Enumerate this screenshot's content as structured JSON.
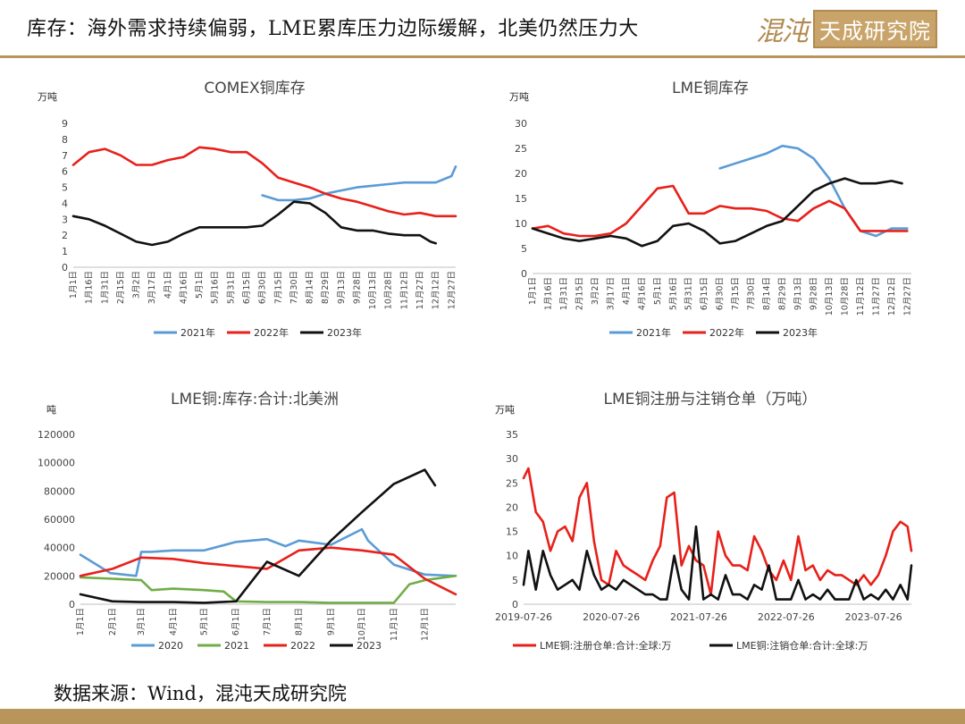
{
  "header": {
    "title": "库存：海外需求持续偏弱，LME累库压力边际缓解，北美仍然压力大",
    "logo_script": "混沌",
    "logo_box": "天成研究院"
  },
  "footer": {
    "source": "数据来源：Wind，混沌天成研究院"
  },
  "colors": {
    "blue": "#5b9bd5",
    "red": "#e8201a",
    "black": "#111111",
    "green": "#70ad47",
    "accent": "#b8955a"
  },
  "chart_data": [
    {
      "id": "comex",
      "type": "line",
      "title": "COMEX铜库存",
      "ylabel": "万吨",
      "ylim": [
        0,
        9
      ],
      "yticks": [
        0,
        1,
        2,
        3,
        4,
        5,
        6,
        7,
        8,
        9
      ],
      "xlim": [
        1,
        365
      ],
      "categories": [
        "1月1日",
        "1月16日",
        "1月31日",
        "2月15日",
        "3月2日",
        "3月17日",
        "4月1日",
        "4月16日",
        "5月1日",
        "5月16日",
        "5月31日",
        "6月15日",
        "6月30日",
        "7月15日",
        "7月30日",
        "8月14日",
        "8月29日",
        "9月13日",
        "9月28日",
        "10月13日",
        "10月28日",
        "11月12日",
        "11月27日",
        "12月12日",
        "12月27日"
      ],
      "x": [
        1,
        16,
        31,
        46,
        61,
        76,
        91,
        106,
        121,
        136,
        151,
        166,
        181,
        196,
        211,
        226,
        241,
        256,
        271,
        286,
        301,
        316,
        331,
        346,
        361
      ],
      "series": [
        {
          "name": "2021年",
          "color": "blue",
          "x_start": 181,
          "x": [
            181,
            196,
            211,
            226,
            241,
            256,
            271,
            286,
            301,
            316,
            331,
            346,
            361,
            365
          ],
          "values": [
            4.5,
            4.2,
            4.2,
            4.3,
            4.6,
            4.8,
            5.0,
            5.1,
            5.2,
            5.3,
            5.3,
            5.3,
            5.7,
            6.3
          ]
        },
        {
          "name": "2022年",
          "color": "red",
          "x": [
            1,
            16,
            31,
            46,
            61,
            76,
            91,
            106,
            121,
            136,
            151,
            166,
            181,
            196,
            211,
            226,
            241,
            256,
            271,
            286,
            301,
            316,
            331,
            346,
            361,
            365
          ],
          "values": [
            6.4,
            7.2,
            7.4,
            7.0,
            6.4,
            6.4,
            6.7,
            6.9,
            7.5,
            7.4,
            7.2,
            7.2,
            6.5,
            5.6,
            5.3,
            5.0,
            4.6,
            4.3,
            4.1,
            3.8,
            3.5,
            3.3,
            3.4,
            3.2,
            3.2,
            3.2
          ]
        },
        {
          "name": "2023年",
          "color": "black",
          "x": [
            1,
            16,
            31,
            46,
            61,
            76,
            91,
            106,
            121,
            136,
            151,
            166,
            181,
            196,
            211,
            226,
            241,
            256,
            271,
            286,
            301,
            316,
            331,
            341,
            346
          ],
          "values": [
            3.2,
            3.0,
            2.6,
            2.1,
            1.6,
            1.4,
            1.6,
            2.1,
            2.5,
            2.5,
            2.5,
            2.5,
            2.6,
            3.3,
            4.1,
            4.0,
            3.4,
            2.5,
            2.3,
            2.3,
            2.1,
            2.0,
            2.0,
            1.6,
            1.5
          ]
        }
      ]
    },
    {
      "id": "lme",
      "type": "line",
      "title": "LME铜库存",
      "ylabel": "万吨",
      "ylim": [
        0,
        30
      ],
      "yticks": [
        0,
        5,
        10,
        15,
        20,
        25,
        30
      ],
      "xlim": [
        1,
        365
      ],
      "categories": [
        "1月1日",
        "1月16日",
        "1月31日",
        "2月15日",
        "3月2日",
        "3月17日",
        "4月1日",
        "4月16日",
        "5月1日",
        "5月16日",
        "5月31日",
        "6月15日",
        "6月30日",
        "7月15日",
        "7月30日",
        "8月14日",
        "8月29日",
        "9月13日",
        "9月28日",
        "10月13日",
        "10月28日",
        "11月12日",
        "11月27日",
        "12月12日",
        "12月27日"
      ],
      "x": [
        1,
        16,
        31,
        46,
        61,
        76,
        91,
        106,
        121,
        136,
        151,
        166,
        181,
        196,
        211,
        226,
        241,
        256,
        271,
        286,
        301,
        316,
        331,
        346,
        361
      ],
      "series": [
        {
          "name": "2021年",
          "color": "blue",
          "x": [
            181,
            196,
            211,
            226,
            241,
            256,
            271,
            286,
            301,
            316,
            331,
            346,
            361
          ],
          "values": [
            21.0,
            22.0,
            23.0,
            24.0,
            25.5,
            25.0,
            23.0,
            19.0,
            13.0,
            8.5,
            7.5,
            9.0,
            9.0
          ]
        },
        {
          "name": "2022年",
          "color": "red",
          "x": [
            1,
            16,
            31,
            46,
            61,
            76,
            91,
            106,
            121,
            136,
            151,
            166,
            181,
            196,
            211,
            226,
            241,
            256,
            271,
            286,
            301,
            316,
            331,
            346,
            361
          ],
          "values": [
            9.0,
            9.5,
            8.0,
            7.5,
            7.5,
            8.0,
            10.0,
            13.5,
            17.0,
            17.5,
            12.0,
            12.0,
            13.5,
            13.0,
            13.0,
            12.5,
            11.0,
            10.5,
            13.0,
            14.5,
            13.0,
            8.5,
            8.5,
            8.5,
            8.5
          ]
        },
        {
          "name": "2023年",
          "color": "black",
          "x": [
            1,
            16,
            31,
            46,
            61,
            76,
            91,
            106,
            121,
            136,
            151,
            166,
            181,
            196,
            211,
            226,
            241,
            256,
            271,
            286,
            301,
            316,
            331,
            346,
            356
          ],
          "values": [
            9.0,
            8.0,
            7.0,
            6.5,
            7.0,
            7.5,
            7.0,
            5.5,
            6.5,
            9.5,
            10.0,
            8.5,
            6.0,
            6.5,
            8.0,
            9.5,
            10.5,
            13.5,
            16.5,
            18.0,
            19.0,
            18.0,
            18.0,
            18.5,
            18.0
          ]
        }
      ]
    },
    {
      "id": "lme-na",
      "type": "line",
      "title": "LME铜:库存:合计:北美洲",
      "ylabel": "吨",
      "ylim": [
        0,
        120000
      ],
      "yticks": [
        0,
        20000,
        40000,
        60000,
        80000,
        100000,
        120000
      ],
      "xlim": [
        1,
        365
      ],
      "categories": [
        "1月1日",
        "2月1日",
        "3月1日",
        "4月1日",
        "5月1日",
        "6月1日",
        "7月1日",
        "8月1日",
        "9月1日",
        "10月1日",
        "11月1日",
        "12月1日"
      ],
      "x": [
        1,
        32,
        60,
        91,
        121,
        152,
        182,
        213,
        244,
        274,
        305,
        335
      ],
      "series": [
        {
          "name": "2020",
          "color": "blue",
          "x": [
            1,
            30,
            55,
            60,
            70,
            91,
            121,
            152,
            182,
            200,
            213,
            244,
            274,
            280,
            305,
            335,
            365
          ],
          "values": [
            35000,
            22000,
            20000,
            37000,
            37000,
            38000,
            38000,
            44000,
            46000,
            41000,
            45000,
            42000,
            53000,
            45000,
            28000,
            21000,
            20000
          ]
        },
        {
          "name": "2021",
          "color": "green",
          "x": [
            1,
            32,
            60,
            70,
            91,
            121,
            140,
            152,
            182,
            213,
            244,
            274,
            305,
            320,
            335,
            365
          ],
          "values": [
            19000,
            18000,
            17000,
            10000,
            11000,
            10000,
            9000,
            2000,
            1500,
            1500,
            1000,
            1000,
            1000,
            14000,
            17000,
            20000
          ]
        },
        {
          "name": "2022",
          "color": "red",
          "x": [
            1,
            32,
            60,
            91,
            121,
            152,
            182,
            213,
            244,
            274,
            305,
            335,
            365
          ],
          "values": [
            20000,
            25000,
            33000,
            32000,
            29000,
            27000,
            25000,
            38000,
            40000,
            38000,
            35000,
            18000,
            7000
          ]
        },
        {
          "name": "2023",
          "color": "black",
          "x": [
            1,
            32,
            60,
            91,
            121,
            152,
            182,
            213,
            244,
            274,
            305,
            335,
            345
          ],
          "values": [
            7000,
            2000,
            1500,
            1500,
            1000,
            2000,
            30000,
            20000,
            45000,
            65000,
            85000,
            95000,
            84000
          ]
        }
      ]
    },
    {
      "id": "lme-warrants",
      "type": "line",
      "title": "LME铜注册与注销仓单（万吨）",
      "ylabel": "万吨",
      "ylim": [
        0,
        35
      ],
      "yticks": [
        0,
        5,
        10,
        15,
        20,
        25,
        30,
        35
      ],
      "xlim": [
        "2019-07-26",
        "2023-12-31"
      ],
      "categories": [
        "2019-07-26",
        "2020-07-26",
        "2021-07-26",
        "2022-07-26",
        "2023-07-26"
      ],
      "series": [
        {
          "name": "LME铜:注册仓单:合计:全球:万",
          "color": "red",
          "x": [
            "2019-07-26",
            "2019-08-15",
            "2019-09-15",
            "2019-10-15",
            "2019-11-15",
            "2019-12-15",
            "2020-01-15",
            "2020-02-15",
            "2020-03-15",
            "2020-04-15",
            "2020-05-15",
            "2020-06-15",
            "2020-07-15",
            "2020-08-15",
            "2020-09-15",
            "2020-10-15",
            "2020-11-15",
            "2020-12-15",
            "2021-01-15",
            "2021-02-15",
            "2021-03-15",
            "2021-04-15",
            "2021-05-15",
            "2021-06-15",
            "2021-07-15",
            "2021-08-15",
            "2021-09-15",
            "2021-10-15",
            "2021-11-15",
            "2021-12-15",
            "2022-01-15",
            "2022-02-15",
            "2022-03-15",
            "2022-04-15",
            "2022-05-15",
            "2022-06-15",
            "2022-07-15",
            "2022-08-15",
            "2022-09-15",
            "2022-10-15",
            "2022-11-15",
            "2022-12-15",
            "2023-01-15",
            "2023-02-15",
            "2023-03-15",
            "2023-04-15",
            "2023-05-15",
            "2023-06-15",
            "2023-07-15",
            "2023-08-15",
            "2023-09-15",
            "2023-10-15",
            "2023-11-15",
            "2023-12-15",
            "2023-12-31"
          ],
          "values": [
            26,
            28,
            19,
            17,
            11,
            15,
            16,
            13,
            22,
            25,
            13,
            5,
            4,
            11,
            8,
            7,
            6,
            5,
            9,
            12,
            22,
            23,
            8,
            12,
            9,
            8,
            2,
            15,
            10,
            8,
            8,
            7,
            14,
            11,
            7,
            5,
            9,
            5,
            14,
            7,
            8,
            5,
            7,
            6,
            6,
            5,
            4,
            6,
            4,
            6,
            10,
            15,
            17,
            16,
            11
          ]
        },
        {
          "name": "LME铜:注销仓单:合计:全球:万",
          "color": "black",
          "x": [
            "2019-07-26",
            "2019-08-15",
            "2019-09-15",
            "2019-10-15",
            "2019-11-15",
            "2019-12-15",
            "2020-01-15",
            "2020-02-15",
            "2020-03-15",
            "2020-04-15",
            "2020-05-15",
            "2020-06-15",
            "2020-07-15",
            "2020-08-15",
            "2020-09-15",
            "2020-10-15",
            "2020-11-15",
            "2020-12-15",
            "2021-01-15",
            "2021-02-15",
            "2021-03-15",
            "2021-04-15",
            "2021-05-15",
            "2021-06-15",
            "2021-07-15",
            "2021-08-15",
            "2021-09-15",
            "2021-10-15",
            "2021-11-15",
            "2021-12-15",
            "2022-01-15",
            "2022-02-15",
            "2022-03-15",
            "2022-04-15",
            "2022-05-15",
            "2022-06-15",
            "2022-07-15",
            "2022-08-15",
            "2022-09-15",
            "2022-10-15",
            "2022-11-15",
            "2022-12-15",
            "2023-01-15",
            "2023-02-15",
            "2023-03-15",
            "2023-04-15",
            "2023-05-15",
            "2023-06-15",
            "2023-07-15",
            "2023-08-15",
            "2023-09-15",
            "2023-10-15",
            "2023-11-15",
            "2023-12-15",
            "2023-12-31"
          ],
          "values": [
            4,
            11,
            3,
            11,
            6,
            3,
            4,
            5,
            3,
            11,
            6,
            3,
            4,
            3,
            5,
            4,
            3,
            2,
            2,
            1,
            1,
            10,
            3,
            1,
            16,
            1,
            2,
            1,
            6,
            2,
            2,
            1,
            4,
            3,
            8,
            1,
            1,
            1,
            5,
            1,
            2,
            1,
            3,
            1,
            1,
            1,
            5,
            1,
            2,
            1,
            3,
            1,
            4,
            1,
            8
          ]
        }
      ]
    }
  ]
}
